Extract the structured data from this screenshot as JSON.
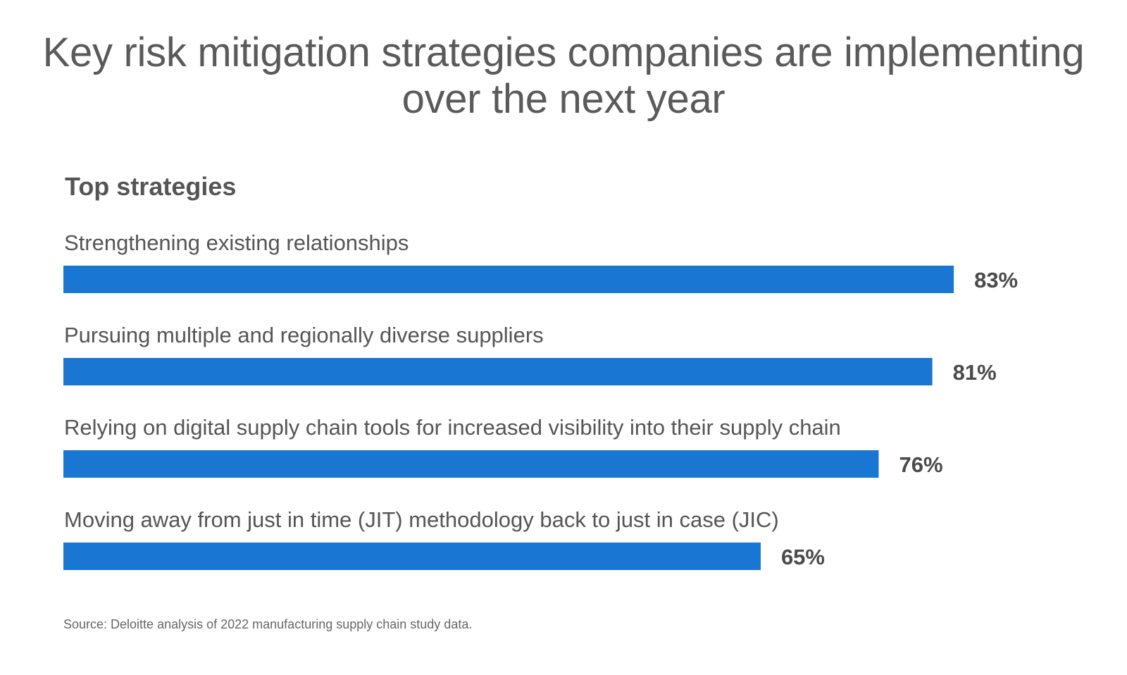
{
  "chart_data": {
    "type": "bar",
    "orientation": "horizontal",
    "title": "Key risk mitigation strategies companies are implementing over the next year",
    "subtitle": "Top strategies",
    "categories": [
      "Strengthening existing relationships",
      "Pursuing multiple and regionally diverse suppliers",
      "Relying on digital supply chain tools for increased visibility into their supply chain",
      "Moving away from just in time (JIT) methodology back to just in case (JIC)"
    ],
    "values": [
      83,
      81,
      76,
      65
    ],
    "value_labels": [
      "83%",
      "81%",
      "76%",
      "65%"
    ],
    "unit": "%",
    "bar_color": "#1976d2",
    "grid": false,
    "legend": "none",
    "source": "Source: Deloitte analysis of 2022 manufacturing supply chain study data."
  }
}
